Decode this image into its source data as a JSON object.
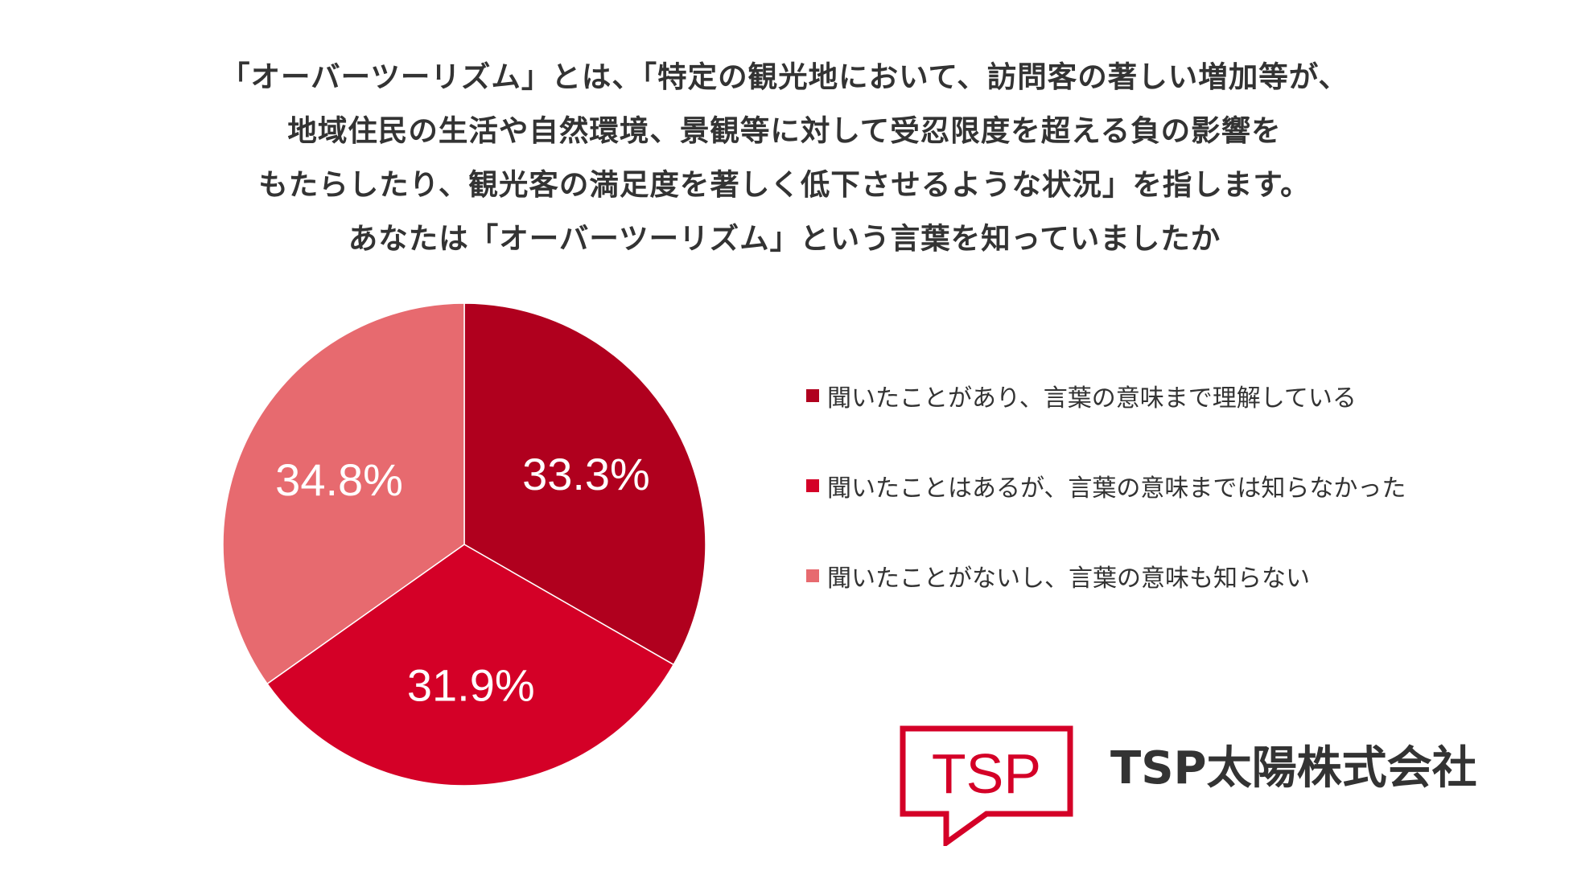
{
  "title_lines": [
    "「オーバーツーリズム」とは、「特定の観光地において、訪問客の著しい増加等が、",
    "地域住民の生活や自然環境、景観等に対して受忍限度を超える負の影響を",
    "もたらしたり、観光客の満足度を著しく低下させるような状況」を指します。",
    "あなたは「オーバーツーリズム」という言葉を知っていましたか"
  ],
  "chart_data": {
    "type": "pie",
    "slices": [
      {
        "label": "聞いたことがあり、言葉の意味まで理解している",
        "value": 33.3,
        "value_label": "33.3%",
        "color": "#B0001E"
      },
      {
        "label": "聞いたことはあるが、言葉の意味までは知らなかった",
        "value": 31.9,
        "value_label": "31.9%",
        "color": "#D40027"
      },
      {
        "label": "聞いたことがないし、言葉の意味も知らない",
        "value": 34.8,
        "value_label": "34.8%",
        "color": "#E76A6F"
      }
    ],
    "start_angle": "12 o'clock",
    "direction": "clockwise",
    "legend_position": "right",
    "legend_marker": "■"
  },
  "branding": {
    "logo_text": "TSP",
    "logo_color": "#D40027",
    "company_name": "TSP太陽株式会社"
  }
}
